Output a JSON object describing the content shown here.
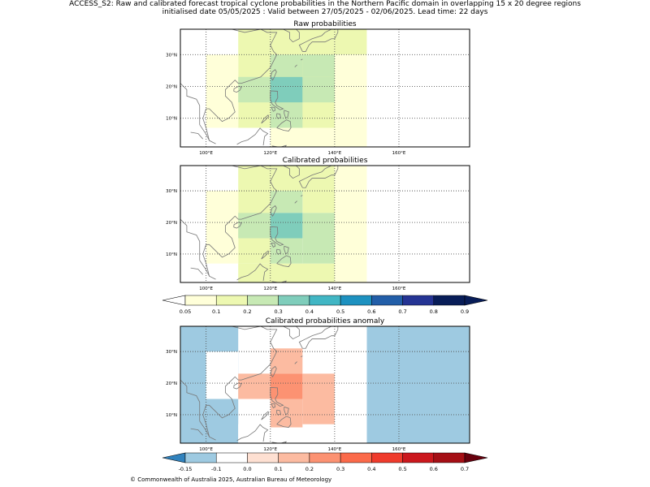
{
  "header": {
    "line1": "ACCESS_S2: Raw and calibrated forecast tropical cyclone probabilities in the Northern Pacific domain in overlapping 15 x 20 degree regions",
    "line2": "initialised date 05/05/2025 :  Valid between 27/05/2025 - 02/06/2025. Lead time: 22 days"
  },
  "footer": {
    "copyright": "© Commonwealth of Australia 2025, Australian Bureau of Meteorology"
  },
  "chart_data": [
    {
      "type": "heatmap",
      "title": "Raw probabilities",
      "x_ticks": [
        "100°E",
        "120°E",
        "140°E",
        "160°E"
      ],
      "y_ticks": [
        "10°N",
        "20°N",
        "30°N"
      ],
      "xlim": [
        92,
        182
      ],
      "ylim": [
        1,
        38
      ],
      "cells": [
        {
          "lon": [
            110,
            120
          ],
          "lat": [
            7,
            38
          ],
          "value": 0.1
        },
        {
          "lon": [
            120,
            140
          ],
          "lat": [
            30,
            38
          ],
          "value": 0.1
        },
        {
          "lon": [
            140,
            150
          ],
          "lat": [
            30,
            38
          ],
          "value": 0.1
        },
        {
          "lon": [
            100,
            110
          ],
          "lat": [
            7,
            30
          ],
          "value": 0.05
        },
        {
          "lon": [
            140,
            150
          ],
          "lat": [
            7,
            30
          ],
          "value": 0.05
        },
        {
          "lon": [
            120,
            150
          ],
          "lat": [
            1,
            7
          ],
          "value": 0.05
        },
        {
          "lon": [
            120,
            140
          ],
          "lat": [
            7,
            30
          ],
          "value": 0.1
        },
        {
          "lon": [
            130,
            140
          ],
          "lat": [
            23,
            30
          ],
          "value": 0.2
        },
        {
          "lon": [
            120,
            130
          ],
          "lat": [
            23,
            30
          ],
          "value": 0.2
        },
        {
          "lon": [
            110,
            120
          ],
          "lat": [
            15,
            23
          ],
          "value": 0.2
        },
        {
          "lon": [
            130,
            140
          ],
          "lat": [
            15,
            23
          ],
          "value": 0.2
        },
        {
          "lon": [
            120,
            130
          ],
          "lat": [
            7,
            15
          ],
          "value": 0.2
        },
        {
          "lon": [
            120,
            130
          ],
          "lat": [
            15,
            23
          ],
          "value": 0.3
        }
      ]
    },
    {
      "type": "heatmap",
      "title": "Calibrated probabilities",
      "x_ticks": [
        "100°E",
        "120°E",
        "140°E",
        "160°E"
      ],
      "y_ticks": [
        "10°N",
        "20°N",
        "30°N"
      ],
      "xlim": [
        92,
        182
      ],
      "ylim": [
        1,
        38
      ],
      "cells": [
        {
          "lon": [
            110,
            120
          ],
          "lat": [
            7,
            38
          ],
          "value": 0.1
        },
        {
          "lon": [
            120,
            140
          ],
          "lat": [
            30,
            38
          ],
          "value": 0.1
        },
        {
          "lon": [
            140,
            150
          ],
          "lat": [
            30,
            38
          ],
          "value": 0.05
        },
        {
          "lon": [
            100,
            110
          ],
          "lat": [
            7,
            30
          ],
          "value": 0.05
        },
        {
          "lon": [
            140,
            150
          ],
          "lat": [
            1,
            30
          ],
          "value": 0.05
        },
        {
          "lon": [
            110,
            140
          ],
          "lat": [
            1,
            7
          ],
          "value": 0.1
        },
        {
          "lon": [
            130,
            140
          ],
          "lat": [
            23,
            30
          ],
          "value": 0.1
        },
        {
          "lon": [
            120,
            130
          ],
          "lat": [
            23,
            30
          ],
          "value": 0.2
        },
        {
          "lon": [
            110,
            120
          ],
          "lat": [
            15,
            23
          ],
          "value": 0.2
        },
        {
          "lon": [
            130,
            140
          ],
          "lat": [
            7,
            23
          ],
          "value": 0.2
        },
        {
          "lon": [
            120,
            130
          ],
          "lat": [
            7,
            15
          ],
          "value": 0.2
        },
        {
          "lon": [
            120,
            130
          ],
          "lat": [
            15,
            23
          ],
          "value": 0.3
        }
      ]
    },
    {
      "type": "heatmap",
      "title": "Calibrated probabilities anomaly",
      "x_ticks": [
        "100°E",
        "120°E",
        "140°E",
        "160°E"
      ],
      "y_ticks": [
        "10°N",
        "20°N",
        "30°N"
      ],
      "xlim": [
        92,
        182
      ],
      "ylim": [
        1,
        38
      ],
      "cells": [
        {
          "lon": [
            92,
            110
          ],
          "lat": [
            1,
            38
          ],
          "value": -0.15
        },
        {
          "lon": [
            150,
            182
          ],
          "lat": [
            1,
            38
          ],
          "value": -0.15
        },
        {
          "lon": [
            100,
            110
          ],
          "lat": [
            15,
            30
          ],
          "value": -0.1
        },
        {
          "lon": [
            140,
            150
          ],
          "lat": [
            1,
            38
          ],
          "value": -0.1
        },
        {
          "lon": [
            110,
            114
          ],
          "lat": [
            1,
            7
          ],
          "value": -0.1
        },
        {
          "lon": [
            114,
            120
          ],
          "lat": [
            1,
            7
          ],
          "value": -0.1
        },
        {
          "lon": [
            120,
            130
          ],
          "lat": [
            23,
            31
          ],
          "value": 0.1
        },
        {
          "lon": [
            110,
            120
          ],
          "lat": [
            15,
            23
          ],
          "value": 0.1
        },
        {
          "lon": [
            130,
            140
          ],
          "lat": [
            7,
            23
          ],
          "value": 0.1
        },
        {
          "lon": [
            120,
            130
          ],
          "lat": [
            6,
            15
          ],
          "value": 0.1
        },
        {
          "lon": [
            120,
            130
          ],
          "lat": [
            15,
            23
          ],
          "value": 0.2
        }
      ]
    }
  ],
  "colorbar_probability": {
    "ticks": [
      "0.05",
      "0.1",
      "0.2",
      "0.3",
      "0.4",
      "0.5",
      "0.6",
      "0.7",
      "0.8",
      "0.9"
    ],
    "colors": [
      "#ffffd9",
      "#edf8b1",
      "#c7e9b4",
      "#7fcdbb",
      "#41b6c4",
      "#1d91c0",
      "#225ea8",
      "#253494",
      "#081d58"
    ],
    "under": "#ffffff",
    "over": "#081d58"
  },
  "colorbar_anomaly": {
    "ticks": [
      "-0.15",
      "-0.1",
      "0.0",
      "0.1",
      "0.2",
      "0.3",
      "0.4",
      "0.5",
      "0.6",
      "0.7"
    ],
    "colors": [
      "#9ecae1",
      "#ffffff",
      "#fee0d2",
      "#fcbba1",
      "#fc9272",
      "#fb6a4a",
      "#ef3b2c",
      "#cb181d",
      "#a50f15"
    ],
    "under": "#3182bd",
    "over": "#67000d"
  },
  "colors": {
    "coast": "#777777",
    "grid": "#555555"
  }
}
